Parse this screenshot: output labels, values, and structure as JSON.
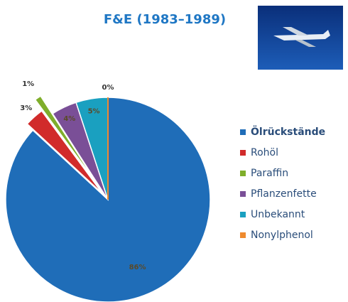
{
  "chart_data": {
    "type": "pie",
    "title": "F&E (1983–1989)",
    "categories": [
      "Ölrückstände",
      "Rohöl",
      "Paraffin",
      "Pflanzenfette",
      "Unbekannt",
      "Nonylphenol"
    ],
    "values": [
      86,
      3,
      1,
      4,
      5,
      0
    ],
    "value_labels": [
      "86%",
      "3%",
      "1%",
      "4%",
      "5%",
      "0%"
    ],
    "colors": [
      "#1f6db8",
      "#d12b2b",
      "#7fae2b",
      "#7a4f97",
      "#1aa0c0",
      "#ef8a2e"
    ],
    "legend": "right"
  }
}
